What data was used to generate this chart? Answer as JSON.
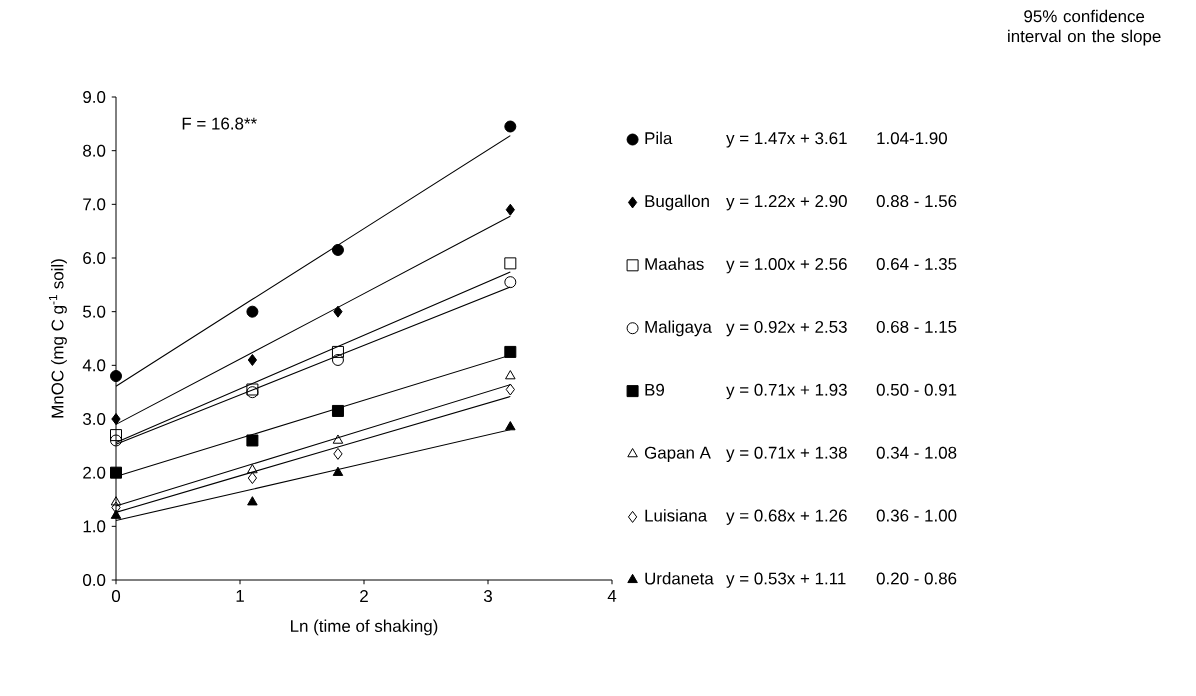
{
  "chart_data": {
    "type": "scatter",
    "xlabel": "Ln (time of shaking)",
    "ylabel": "MnOC (mg C g$^{-1}$ soil)",
    "x": [
      0,
      1.1,
      1.79,
      3.18
    ],
    "xlim": [
      0,
      4
    ],
    "xticks": [
      0,
      1,
      2,
      3,
      4
    ],
    "ylim": [
      0,
      9
    ],
    "yticks": [
      {
        "value": 0,
        "label": "0.0"
      },
      {
        "value": 1,
        "label": "1.0"
      },
      {
        "value": 2,
        "label": "2.0"
      },
      {
        "value": 3,
        "label": "3.0"
      },
      {
        "value": 4,
        "label": "4.0"
      },
      {
        "value": 5,
        "label": "5.0"
      },
      {
        "value": 6,
        "label": "6.0"
      },
      {
        "value": 7,
        "label": "7.0"
      },
      {
        "value": 8,
        "label": "8.0"
      },
      {
        "value": 9,
        "label": "9.0"
      }
    ],
    "legend": "right",
    "grid": false,
    "series": [
      {
        "name": "Pila",
        "color": "#000000",
        "marker": "circle",
        "values": [
          3.8,
          5.0,
          6.15,
          8.45
        ]
      },
      {
        "name": "Bugallon",
        "color": "#000000",
        "marker": "diamond",
        "values": [
          3.0,
          4.1,
          5.0,
          6.9
        ]
      },
      {
        "name": "Maahas",
        "color": "#000000",
        "marker": "square-open",
        "values": [
          2.7,
          3.55,
          4.25,
          5.9
        ]
      },
      {
        "name": "Maligaya",
        "color": "#000000",
        "marker": "circle-open",
        "values": [
          2.6,
          3.5,
          4.1,
          5.55
        ]
      },
      {
        "name": "B9",
        "color": "#000000",
        "marker": "square",
        "values": [
          2.0,
          2.6,
          3.15,
          4.25
        ]
      },
      {
        "name": "Gapan A",
        "color": "#000000",
        "marker": "triangle-open",
        "values": [
          1.45,
          2.05,
          2.6,
          3.8
        ]
      },
      {
        "name": "Luisiana",
        "color": "#000000",
        "marker": "diamond-open",
        "values": [
          1.35,
          1.9,
          2.35,
          3.55
        ]
      },
      {
        "name": "Urdaneta",
        "color": "#000000",
        "marker": "triangle",
        "values": [
          1.2,
          1.45,
          2.0,
          2.85
        ]
      },
      {
        "type": "line",
        "color": "#000000",
        "values": [
          3.61,
          5.23,
          6.24,
          8.28
        ]
      },
      {
        "type": "line",
        "color": "#000000",
        "values": [
          2.9,
          4.24,
          5.08,
          6.78
        ]
      },
      {
        "type": "line",
        "color": "#000000",
        "values": [
          2.56,
          3.66,
          4.35,
          5.74
        ]
      },
      {
        "type": "line",
        "color": "#000000",
        "values": [
          2.53,
          3.54,
          4.18,
          5.46
        ]
      },
      {
        "type": "line",
        "color": "#000000",
        "values": [
          1.93,
          2.71,
          3.2,
          4.19
        ]
      },
      {
        "type": "line",
        "color": "#000000",
        "values": [
          1.38,
          2.16,
          2.65,
          3.64
        ]
      },
      {
        "type": "line",
        "color": "#000000",
        "values": [
          1.26,
          2.01,
          2.48,
          3.42
        ]
      },
      {
        "type": "line",
        "color": "#000000",
        "values": [
          1.11,
          1.69,
          2.06,
          2.8
        ]
      }
    ],
    "annotations": [
      "95% confidence interval on the slope",
      "F = 16.8**",
      "y = 1.47x + 3.61",
      "y = 1.22x + 2.90",
      "y = 1.00x + 2.56",
      "y = 0.92x + 2.53",
      "y = 0.71x + 1.93",
      "y = 0.71x + 1.38",
      "y = 0.68x + 1.26",
      "y = 0.53x + 1.11",
      "1.04-1.90",
      "0.88 - 1.56",
      "0.64 - 1.35",
      "0.68 - 1.15",
      "0.50 - 0.91",
      "0.34 - 1.08",
      "0.36 - 1.00",
      "0.20 - 0.86"
    ]
  }
}
